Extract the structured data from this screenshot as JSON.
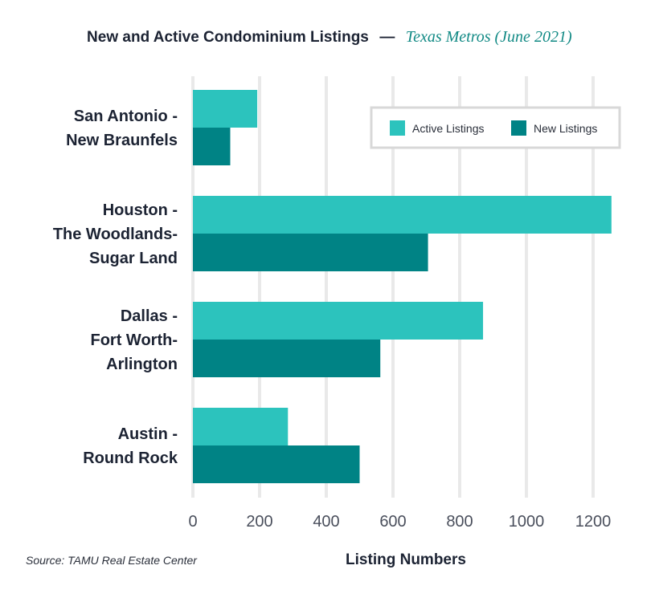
{
  "chart_data": {
    "type": "bar",
    "orientation": "horizontal",
    "title": "New and Active Condominium Listings",
    "title_separator": "—",
    "subtitle": "Texas Metros (June 2021)",
    "xlabel": "Listing Numbers",
    "ylabel": "",
    "xlim": [
      0,
      1300
    ],
    "xticks": [
      0,
      200,
      400,
      600,
      800,
      1000,
      1200
    ],
    "grid": "vertical",
    "legend_position": "top-right",
    "categories": [
      [
        "San Antonio -",
        "New Braunfels"
      ],
      [
        "Houston -",
        "The Woodlands-",
        "Sugar Land"
      ],
      [
        "Dallas -",
        "Fort Worth-",
        "Arlington"
      ],
      [
        "Austin -",
        "Round Rock"
      ]
    ],
    "series": [
      {
        "name": "Active Listings",
        "color": "#2cc3bd",
        "values": [
          193,
          1255,
          870,
          285
        ]
      },
      {
        "name": "New Listings",
        "color": "#008385",
        "values": [
          112,
          705,
          562,
          500
        ]
      }
    ],
    "source": "Source: TAMU Real Estate Center"
  }
}
